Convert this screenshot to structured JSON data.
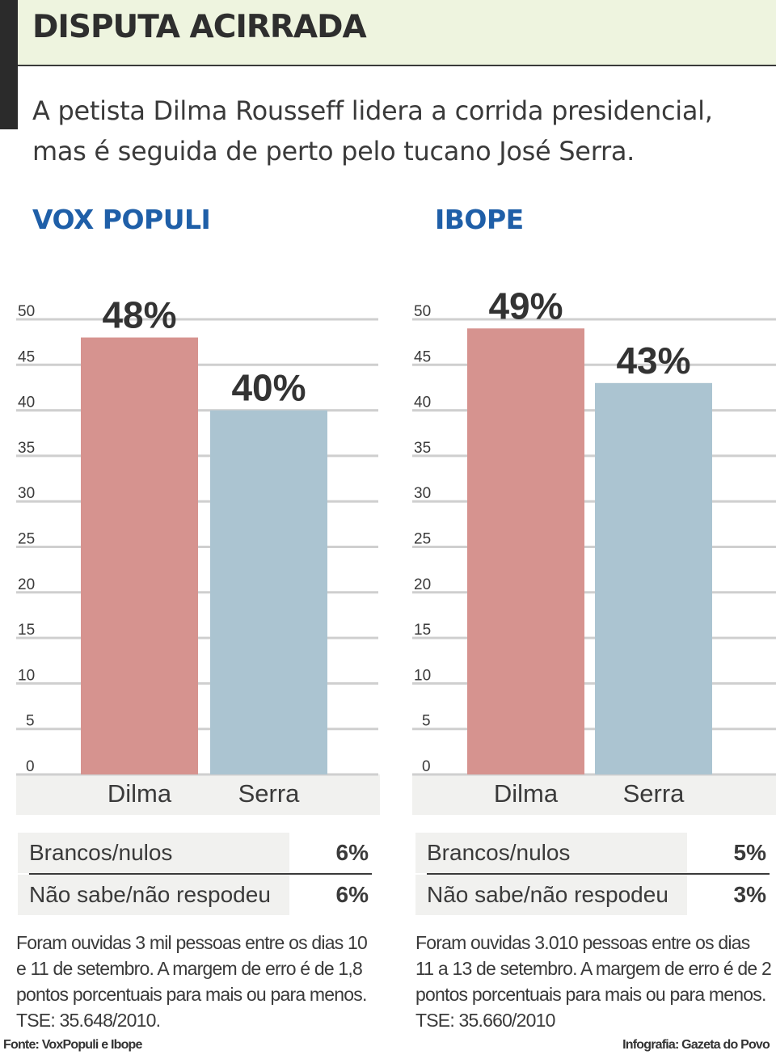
{
  "header": {
    "title": "DISPUTA ACIRRADA",
    "subtitle": "A petista Dilma Rousseff lidera a corrida presidencial, mas é seguida de perto pelo tucano José Serra."
  },
  "colors": {
    "dilma": "#d6938f",
    "serra": "#abc4d1",
    "grid": "#cfcfcf",
    "base": "#f1f1ef",
    "panel_title": "#1f5fa8"
  },
  "chart_data": [
    {
      "type": "bar",
      "title": "VOX POPULI",
      "categories": [
        "Dilma",
        "Serra"
      ],
      "values": [
        48,
        40
      ],
      "value_labels": [
        "48%",
        "40%"
      ],
      "ylim": [
        0,
        50
      ],
      "yticks": [
        0,
        5,
        10,
        15,
        20,
        25,
        30,
        35,
        40,
        45,
        50
      ],
      "grid": true
    },
    {
      "type": "bar",
      "title": "IBOPE",
      "categories": [
        "Dilma",
        "Serra"
      ],
      "values": [
        49,
        43
      ],
      "value_labels": [
        "49%",
        "43%"
      ],
      "ylim": [
        0,
        50
      ],
      "yticks": [
        0,
        5,
        10,
        15,
        20,
        25,
        30,
        35,
        40,
        45,
        50
      ],
      "grid": true
    }
  ],
  "panels": [
    {
      "stats": [
        {
          "label": "Brancos/nulos",
          "value": "6%"
        },
        {
          "label": "Não sabe/não respodeu",
          "value": "6%"
        }
      ],
      "note": "Foram ouvidas 3 mil pessoas entre os dias 10 e 11 de setembro. A margem de erro é de 1,8 pontos porcentuais para mais ou para menos. TSE: 35.648/2010."
    },
    {
      "stats": [
        {
          "label": "Brancos/nulos",
          "value": "5%"
        },
        {
          "label": "Não sabe/não respodeu",
          "value": "3%"
        }
      ],
      "note": "Foram ouvidas 3.010 pessoas entre os dias 11 a 13 de setembro. A margem de erro é de 2 pontos porcentuais para mais ou para menos. TSE: 35.660/2010"
    }
  ],
  "footer": {
    "source": "Fonte: VoxPopuli e Ibope",
    "credit": "Infografia: Gazeta do Povo"
  }
}
